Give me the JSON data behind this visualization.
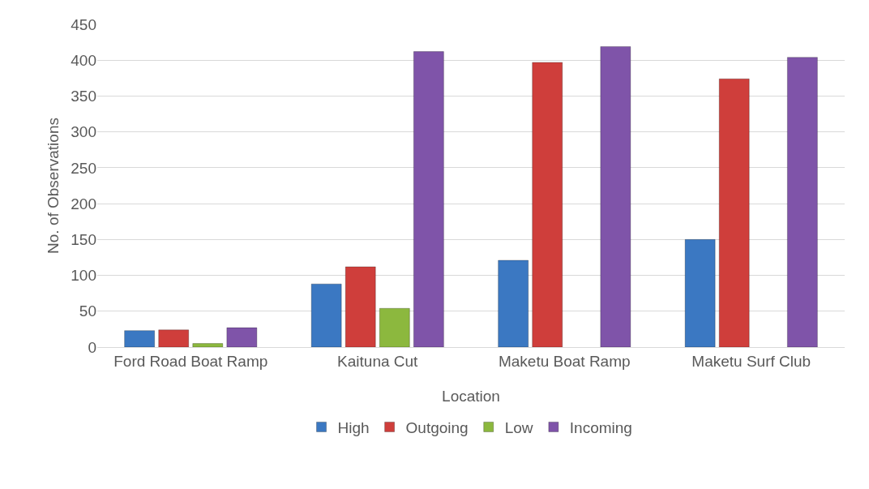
{
  "chart_data": {
    "type": "bar",
    "xlabel": "Location",
    "ylabel": "No. of Observations",
    "categories": [
      "Ford Road Boat Ramp",
      "Kaituna Cut",
      "Maketu Boat Ramp",
      "Maketu Surf Club"
    ],
    "series": [
      {
        "name": "High",
        "color": "#3b78c2",
        "values": [
          23,
          88,
          121,
          150
        ]
      },
      {
        "name": "Outgoing",
        "color": "#cf3e3b",
        "values": [
          24,
          112,
          397,
          374
        ]
      },
      {
        "name": "Low",
        "color": "#8cb83e",
        "values": [
          5,
          54,
          null,
          null
        ]
      },
      {
        "name": "Incoming",
        "color": "#7f54a9",
        "values": [
          27,
          412,
          419,
          404
        ]
      }
    ],
    "ylim": [
      0,
      450
    ],
    "yticks": [
      0,
      50,
      100,
      150,
      200,
      250,
      300,
      350,
      400,
      450
    ],
    "grid": "y",
    "legend": "bottom"
  }
}
